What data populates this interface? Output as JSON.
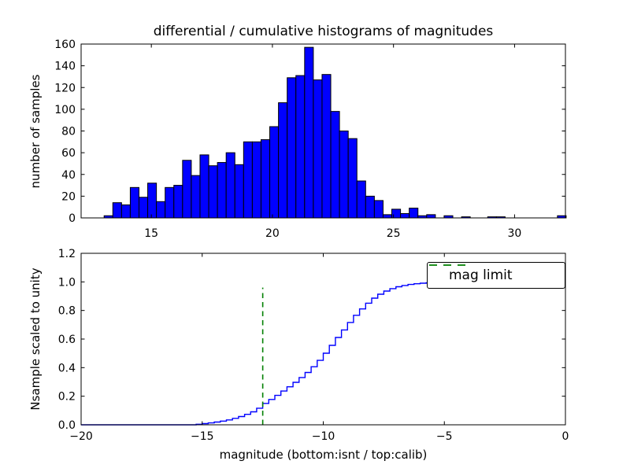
{
  "title": "differential / cumulative histograms of magnitudes",
  "background": "#ffffff",
  "colors": {
    "histogram_fill": "#0000ff",
    "histogram_edge": "#000000",
    "cumulative_line": "#0000ff",
    "mag_limit_green": "#008000",
    "axes": "#000000",
    "text": "#000000"
  },
  "chart_data": [
    {
      "type": "bar",
      "subplot": "top",
      "description": "differential histogram of calibrated magnitudes",
      "ylabel": "number of samples",
      "xlim": [
        12.1,
        32.1
      ],
      "ylim": [
        0,
        160
      ],
      "xticks": [
        "15",
        "20",
        "25",
        "30"
      ],
      "xtick_values": [
        15,
        20,
        25,
        30
      ],
      "yticks": [
        "0",
        "20",
        "40",
        "60",
        "80",
        "100",
        "120",
        "140",
        "160"
      ],
      "ytick_values": [
        0,
        20,
        40,
        60,
        80,
        100,
        120,
        140,
        160
      ],
      "bin_start": 13.05,
      "bin_width": 0.36,
      "counts": [
        2,
        14,
        12,
        28,
        19,
        32,
        15,
        28,
        30,
        53,
        39,
        58,
        48,
        51,
        60,
        49,
        70,
        70,
        72,
        84,
        106,
        129,
        131,
        157,
        127,
        132,
        98,
        80,
        73,
        34,
        20,
        16,
        3,
        8,
        4,
        9,
        2,
        3,
        0,
        2,
        0,
        1,
        0,
        0,
        1,
        1,
        0,
        0,
        0,
        0,
        0,
        0,
        2
      ],
      "grid": false,
      "legend": null
    },
    {
      "type": "line",
      "subplot": "bottom",
      "description": "cumulative histogram of instrumental magnitudes scaled to unity",
      "style": "steps-post",
      "xlabel": "magnitude (bottom:isnt / top:calib)",
      "ylabel": "Nsample scaled to unity",
      "xlim": [
        -20,
        0
      ],
      "ylim": [
        0,
        1.2
      ],
      "xticks": [
        "−20",
        "−15",
        "−10",
        "−5",
        "0"
      ],
      "xtick_values": [
        -20,
        -15,
        -10,
        -5,
        0
      ],
      "yticks": [
        "0.0",
        "0.2",
        "0.4",
        "0.6",
        "0.8",
        "1.0",
        "1.2"
      ],
      "ytick_values": [
        0,
        0.2,
        0.4,
        0.6,
        0.8,
        1.0,
        1.2
      ],
      "steps": [
        [
          -20,
          0
        ],
        [
          -15.5,
          0
        ],
        [
          -15.25,
          0.004
        ],
        [
          -15,
          0.008
        ],
        [
          -14.75,
          0.013
        ],
        [
          -14.5,
          0.019
        ],
        [
          -14.25,
          0.026
        ],
        [
          -14,
          0.034
        ],
        [
          -13.75,
          0.045
        ],
        [
          -13.5,
          0.058
        ],
        [
          -13.25,
          0.073
        ],
        [
          -13,
          0.091
        ],
        [
          -12.75,
          0.116
        ],
        [
          -12.5,
          0.15
        ],
        [
          -12.25,
          0.177
        ],
        [
          -12,
          0.206
        ],
        [
          -11.75,
          0.236
        ],
        [
          -11.5,
          0.266
        ],
        [
          -11.25,
          0.297
        ],
        [
          -11,
          0.331
        ],
        [
          -10.75,
          0.366
        ],
        [
          -10.5,
          0.406
        ],
        [
          -10.25,
          0.451
        ],
        [
          -10,
          0.501
        ],
        [
          -9.75,
          0.556
        ],
        [
          -9.5,
          0.611
        ],
        [
          -9.25,
          0.664
        ],
        [
          -9,
          0.716
        ],
        [
          -8.75,
          0.766
        ],
        [
          -8.5,
          0.811
        ],
        [
          -8.25,
          0.851
        ],
        [
          -8,
          0.886
        ],
        [
          -7.75,
          0.914
        ],
        [
          -7.5,
          0.936
        ],
        [
          -7.25,
          0.953
        ],
        [
          -7,
          0.966
        ],
        [
          -6.75,
          0.975
        ],
        [
          -6.5,
          0.982
        ],
        [
          -6.25,
          0.987
        ],
        [
          -6,
          0.991
        ],
        [
          -5.75,
          0.994
        ],
        [
          -5.5,
          0.996
        ],
        [
          -5.25,
          0.997
        ],
        [
          -5,
          0.998
        ],
        [
          -4.75,
          0.999
        ],
        [
          -4.5,
          0.999
        ],
        [
          -4.25,
          1
        ],
        [
          0,
          1
        ]
      ],
      "mag_limit": {
        "x": -12.5,
        "y_range": [
          0,
          0.96
        ],
        "color": "#008000",
        "style": "dashed"
      },
      "legend": {
        "label": "mag limit",
        "position": "upper right",
        "sample_style": "dashed",
        "sample_color": "#008000"
      },
      "grid": false
    }
  ]
}
